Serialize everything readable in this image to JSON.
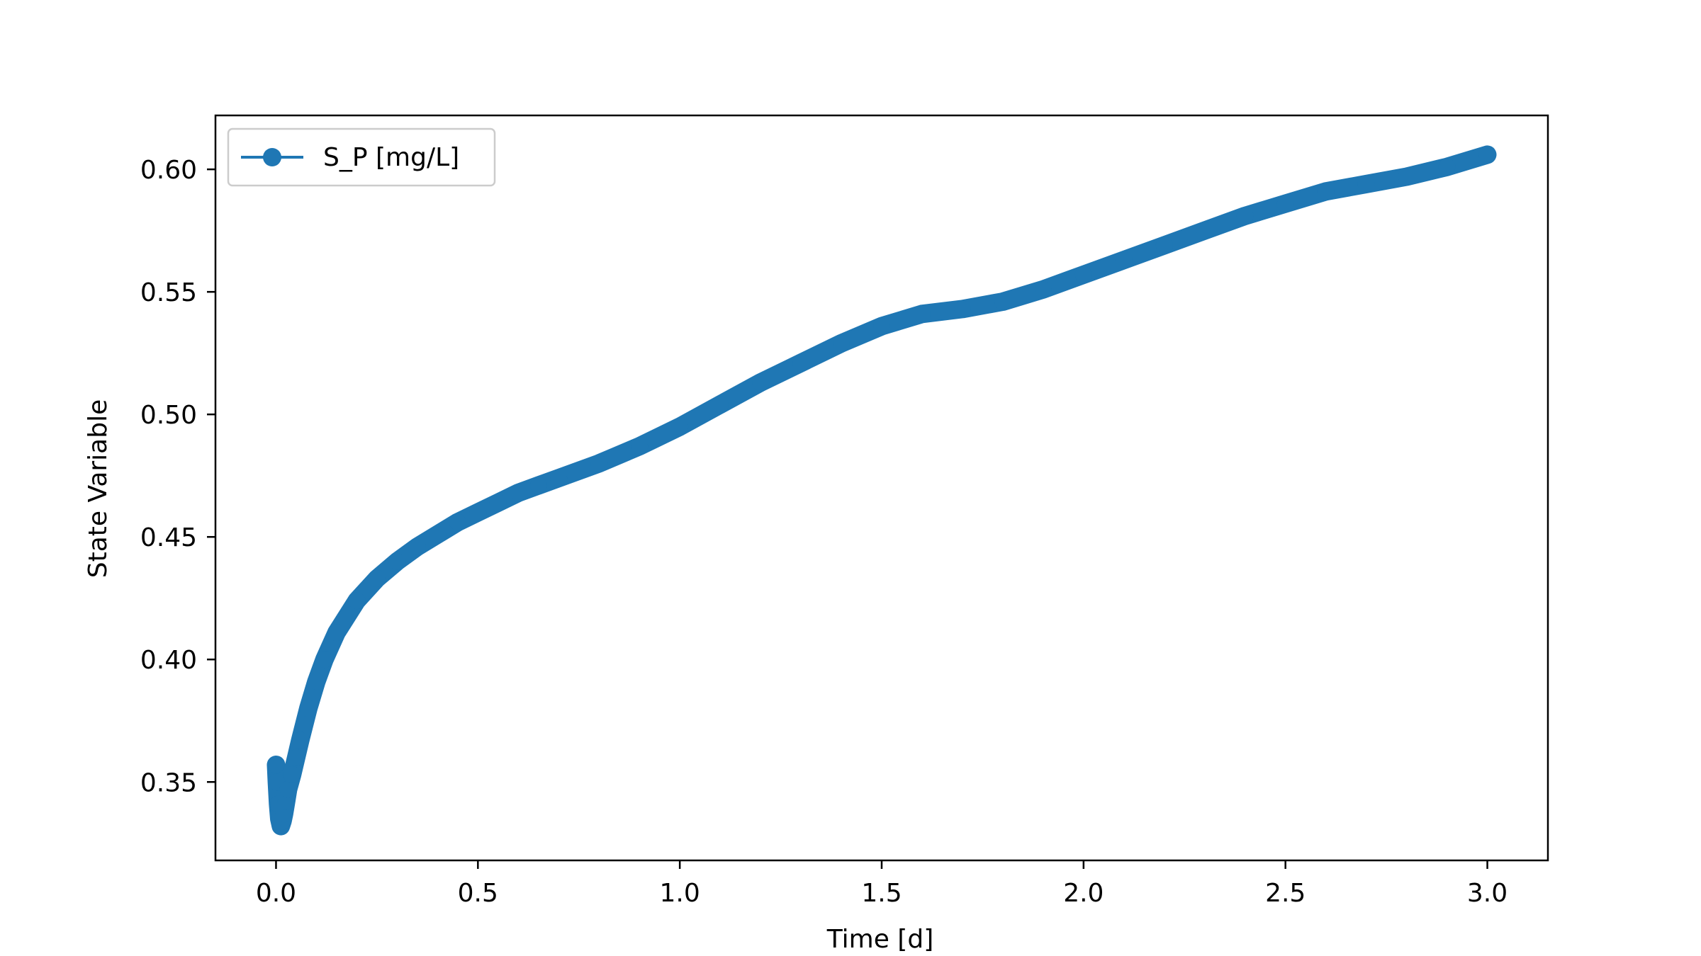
{
  "chart_data": {
    "type": "line",
    "title": "",
    "xlabel": "Time [d]",
    "ylabel": "State Variable",
    "xlim": [
      -0.15,
      3.15
    ],
    "ylim": [
      0.318,
      0.622
    ],
    "xticks": [
      0.0,
      0.5,
      1.0,
      1.5,
      2.0,
      2.5,
      3.0
    ],
    "xtick_labels": [
      "0.0",
      "0.5",
      "1.0",
      "1.5",
      "2.0",
      "2.5",
      "3.0"
    ],
    "yticks": [
      0.35,
      0.4,
      0.45,
      0.5,
      0.55,
      0.6
    ],
    "ytick_labels": [
      "0.35",
      "0.40",
      "0.45",
      "0.50",
      "0.55",
      "0.60"
    ],
    "grid": false,
    "legend_position": "upper-left",
    "series": [
      {
        "name": "S_P [mg/L]",
        "color": "#1f77b4",
        "marker": "circle",
        "x": [
          0.0,
          0.002,
          0.005,
          0.008,
          0.012,
          0.016,
          0.02,
          0.025,
          0.03,
          0.04,
          0.05,
          0.06,
          0.08,
          0.1,
          0.12,
          0.15,
          0.2,
          0.25,
          0.3,
          0.35,
          0.4,
          0.45,
          0.5,
          0.55,
          0.6,
          0.65,
          0.7,
          0.8,
          0.9,
          1.0,
          1.1,
          1.2,
          1.3,
          1.4,
          1.5,
          1.6,
          1.7,
          1.8,
          1.9,
          2.0,
          2.1,
          2.2,
          2.3,
          2.4,
          2.5,
          2.6,
          2.7,
          2.8,
          2.9,
          3.0
        ],
        "y": [
          0.357,
          0.35,
          0.341,
          0.335,
          0.332,
          0.334,
          0.337,
          0.342,
          0.347,
          0.353,
          0.36,
          0.367,
          0.38,
          0.391,
          0.4,
          0.411,
          0.424,
          0.433,
          0.44,
          0.446,
          0.451,
          0.456,
          0.46,
          0.464,
          0.468,
          0.471,
          0.474,
          0.48,
          0.487,
          0.495,
          0.504,
          0.513,
          0.521,
          0.529,
          0.536,
          0.541,
          0.543,
          0.546,
          0.551,
          0.557,
          0.563,
          0.569,
          0.575,
          0.581,
          0.586,
          0.591,
          0.594,
          0.597,
          0.601,
          0.606
        ]
      }
    ]
  }
}
